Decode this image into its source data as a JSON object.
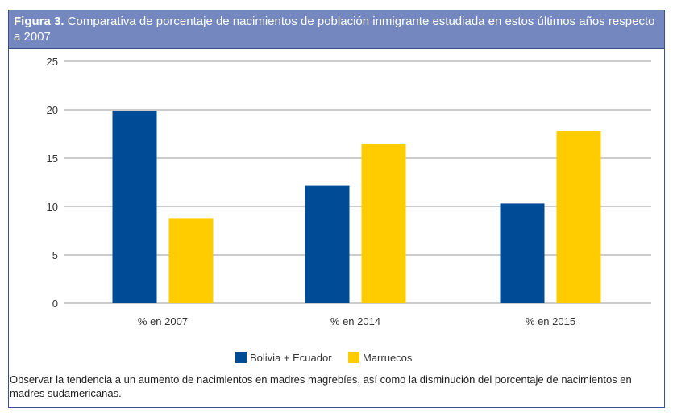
{
  "figure": {
    "label": "Figura 3.",
    "title": "Comparativa de porcentaje de nacimientos de población inmigrante estudiada en estos últimos años respecto a 2007",
    "note": "Observar la tendencia a un aumento de nacimientos en madres magrebíes, así como la disminución del porcentaje de nacimientos en madres sudamericanas."
  },
  "colors": {
    "header": "#7487be",
    "series1": "#004b96",
    "series2": "#ffcc00"
  },
  "chart_data": {
    "type": "bar",
    "categories": [
      "% en 2007",
      "% en 2014",
      "% en 2015"
    ],
    "series": [
      {
        "name": "Bolivia + Ecuador",
        "values": [
          19.9,
          12.2,
          10.3
        ]
      },
      {
        "name": "Marruecos",
        "values": [
          8.8,
          16.5,
          17.8
        ]
      }
    ],
    "ylim": [
      0,
      25
    ],
    "yticks": [
      0,
      5,
      10,
      15,
      20,
      25
    ],
    "grid": true,
    "legend": "bottom",
    "xlabel": "",
    "ylabel": ""
  }
}
